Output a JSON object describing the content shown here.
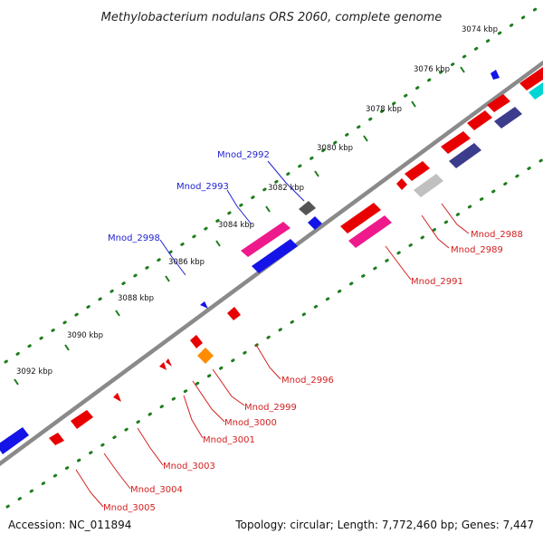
{
  "title": "Methylobacterium nodulans ORS 2060, complete genome",
  "footer": {
    "accession": "Accession: NC_011894",
    "topology": "Topology: circular; Length: 7,772,460 bp; Genes: 7,447"
  },
  "colors": {
    "backbone": "#8a8a8a",
    "ticks": "#1e7d1e",
    "label_above": "#1f1fd0",
    "label_below": "#d42020"
  },
  "ticks": [
    {
      "label": "3074 kbp",
      "kbp": 3074
    },
    {
      "label": "3076 kbp",
      "kbp": 3076
    },
    {
      "label": "3078 kbp",
      "kbp": 3078
    },
    {
      "label": "3080 kbp",
      "kbp": 3080
    },
    {
      "label": "3082 kbp",
      "kbp": 3082
    },
    {
      "label": "3084 kbp",
      "kbp": 3084
    },
    {
      "label": "3086 kbp",
      "kbp": 3086
    },
    {
      "label": "3088 kbp",
      "kbp": 3088
    },
    {
      "label": "3090 kbp",
      "kbp": 3090
    },
    {
      "label": "3092 kbp",
      "kbp": 3092
    }
  ],
  "labeled_genes": [
    {
      "name": "Mnod_2992",
      "side": "above"
    },
    {
      "name": "Mnod_2993",
      "side": "above"
    },
    {
      "name": "Mnod_2998",
      "side": "above"
    },
    {
      "name": "Mnod_2988",
      "side": "below"
    },
    {
      "name": "Mnod_2989",
      "side": "below"
    },
    {
      "name": "Mnod_2991",
      "side": "below"
    },
    {
      "name": "Mnod_2996",
      "side": "below"
    },
    {
      "name": "Mnod_2999",
      "side": "below"
    },
    {
      "name": "Mnod_3000",
      "side": "below"
    },
    {
      "name": "Mnod_3001",
      "side": "below"
    },
    {
      "name": "Mnod_3003",
      "side": "below"
    },
    {
      "name": "Mnod_3004",
      "side": "below"
    },
    {
      "name": "Mnod_3005",
      "side": "below"
    }
  ]
}
